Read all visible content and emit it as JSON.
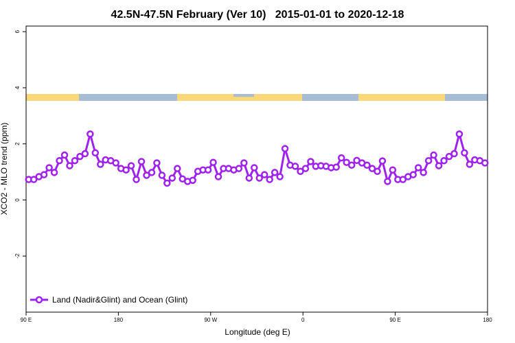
{
  "chart_data": {
    "type": "line",
    "title": "42.5N-47.5N February (Ver 10)   2015-01-01 to 2020-12-18",
    "x_label": "Longitude (deg E)",
    "y_label": "XCO2 - MLO trend (ppm)",
    "xlim": [
      90,
      540
    ],
    "ylim": [
      -4,
      6.2
    ],
    "xticks": [
      {
        "value": 90,
        "label": "90 E"
      },
      {
        "value": 180,
        "label": "180"
      },
      {
        "value": 270,
        "label": "90 W"
      },
      {
        "value": 360,
        "label": "0"
      },
      {
        "value": 450,
        "label": "90 E"
      },
      {
        "value": 540,
        "label": "180"
      }
    ],
    "yticks": [
      -2,
      0,
      2,
      4,
      6
    ],
    "grid": false,
    "legend": "bottomleft",
    "x": [
      92.5,
      97.5,
      102.5,
      107.5,
      112.5,
      117.5,
      122.5,
      127.5,
      132.5,
      137.5,
      142.5,
      147.5,
      152.5,
      157.5,
      162.5,
      167.5,
      172.5,
      177.5,
      182.5,
      187.5,
      192.5,
      197.5,
      202.5,
      207.5,
      212.5,
      217.5,
      222.5,
      227.5,
      232.5,
      237.5,
      242.5,
      247.5,
      252.5,
      257.5,
      262.5,
      267.5,
      272.5,
      277.5,
      282.5,
      287.5,
      292.5,
      297.5,
      302.5,
      307.5,
      312.5,
      317.5,
      322.5,
      327.5,
      332.5,
      337.5,
      342.5,
      347.5,
      352.5,
      357.5,
      362.5,
      367.5,
      372.5,
      377.5,
      382.5,
      387.5,
      392.5,
      397.5,
      402.5,
      407.5,
      412.5,
      417.5,
      422.5,
      427.5,
      432.5,
      437.5,
      442.5,
      447.5,
      452.5,
      457.5,
      462.5,
      467.5,
      472.5,
      477.5,
      482.5,
      487.5,
      492.5,
      497.5,
      502.5,
      507.5,
      512.5,
      517.5,
      522.5,
      527.5,
      532.5,
      537.5
    ],
    "series": [
      {
        "name": "Land (Nadir&Glint) and Ocean (Glint)",
        "color": "#a020f0",
        "values": [
          0.73,
          0.73,
          0.83,
          0.9,
          1.15,
          0.98,
          1.4,
          1.6,
          1.22,
          1.4,
          1.55,
          1.65,
          2.35,
          1.68,
          1.27,
          1.43,
          1.4,
          1.32,
          1.12,
          1.07,
          1.22,
          0.73,
          1.37,
          0.88,
          0.98,
          1.32,
          0.88,
          0.6,
          0.78,
          1.12,
          0.75,
          0.66,
          0.7,
          1.02,
          1.07,
          1.07,
          1.34,
          0.83,
          1.12,
          1.12,
          1.07,
          1.12,
          1.32,
          0.78,
          1.15,
          0.78,
          0.9,
          0.73,
          0.98,
          0.83,
          1.83,
          1.24,
          1.2,
          1.02,
          1.12,
          1.37,
          1.2,
          1.22,
          1.2,
          1.15,
          1.17,
          1.5,
          1.34,
          1.24,
          1.41,
          1.32,
          1.24,
          1.12,
          1.02,
          1.39,
          0.66,
          1.07,
          0.73,
          0.73,
          0.83,
          0.9,
          1.15,
          0.98,
          1.4,
          1.6,
          1.22,
          1.4,
          1.55,
          1.65,
          2.35,
          1.68,
          1.27,
          1.43,
          1.4,
          1.32
        ]
      }
    ]
  }
}
